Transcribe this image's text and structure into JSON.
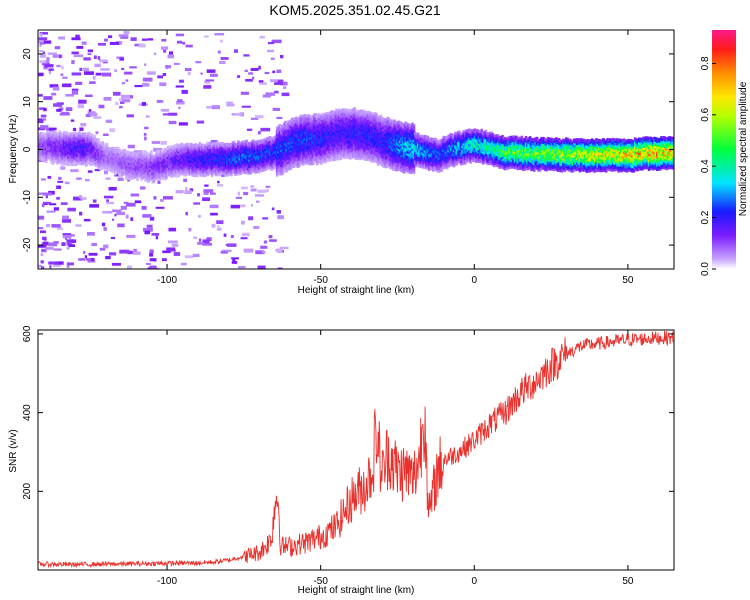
{
  "title": "KOM5.2025.351.02.45.G21",
  "chart_data": [
    {
      "type": "heatmap",
      "name": "spectrogram",
      "xlabel": "Height of straight line (km)",
      "ylabel": "Frequency (Hz)",
      "xlim": [
        -142,
        65
      ],
      "ylim": [
        -25,
        25
      ],
      "x_ticks": [
        -100,
        -50,
        0,
        50
      ],
      "x_tick_labels": [
        "-100",
        "-50",
        "0",
        "50"
      ],
      "y_ticks": [
        -20,
        -10,
        0,
        10,
        20
      ],
      "y_tick_labels": [
        "-20",
        "-10",
        "0",
        "10",
        "20"
      ],
      "colorbar": {
        "label": "Normalized spectral amplitude",
        "range": [
          0,
          0.93
        ],
        "ticks": [
          0.0,
          0.2,
          0.4,
          0.6,
          0.8
        ],
        "tick_labels": [
          "0.0",
          "0.2",
          "0.4",
          "0.6",
          "0.8"
        ]
      },
      "ridge": {
        "x": [
          -142,
          -128,
          -125,
          -120,
          -113,
          -105,
          -98,
          -92,
          -85,
          -80,
          -75,
          -70,
          -65,
          -60,
          -55,
          -50,
          -45,
          -40,
          -35,
          -30,
          -25,
          -20,
          -15,
          -12,
          -8,
          -4,
          0,
          5,
          10,
          20,
          30,
          40,
          50,
          60,
          65
        ],
        "freq": [
          0.8,
          0.5,
          0.3,
          -1.5,
          -3.0,
          -3.5,
          -2.0,
          -1.8,
          -1.7,
          -1.6,
          -1.3,
          -1.0,
          -0.2,
          1.5,
          2.5,
          2.5,
          3.5,
          3.8,
          3.2,
          2.0,
          1.0,
          0.5,
          -0.5,
          -1.0,
          0.2,
          0.8,
          1.3,
          0.5,
          -0.3,
          -0.6,
          -0.8,
          -0.9,
          -0.8,
          -0.4,
          -0.2
        ],
        "amplitude": [
          0.1,
          0.2,
          0.15,
          0.08,
          0.1,
          0.12,
          0.15,
          0.2,
          0.22,
          0.25,
          0.28,
          0.25,
          0.25,
          0.25,
          0.25,
          0.22,
          0.2,
          0.22,
          0.22,
          0.22,
          0.3,
          0.35,
          0.3,
          0.25,
          0.3,
          0.35,
          0.4,
          0.4,
          0.5,
          0.55,
          0.6,
          0.65,
          0.7,
          0.75,
          0.7
        ]
      }
    },
    {
      "type": "line",
      "name": "snr",
      "xlabel": "Height of straight line (km)",
      "ylabel": "SNR (v/v)",
      "xlim": [
        -142,
        65
      ],
      "ylim": [
        0,
        610
      ],
      "x_ticks": [
        -100,
        -50,
        0,
        50
      ],
      "x_tick_labels": [
        "-100",
        "-50",
        "0",
        "50"
      ],
      "y_ticks": [
        200,
        400,
        600
      ],
      "y_tick_labels": [
        "200",
        "400",
        "600"
      ],
      "series": [
        {
          "name": "SNR",
          "color": "#e8312c",
          "x": [
            -142,
            -130,
            -120,
            -110,
            -100,
            -90,
            -85,
            -80,
            -75,
            -70,
            -68,
            -66,
            -65,
            -64,
            -63,
            -60,
            -55,
            -50,
            -45,
            -40,
            -35,
            -33,
            -32,
            -30,
            -28,
            -25,
            -22,
            -20,
            -18,
            -16,
            -15,
            -12,
            -10,
            -5,
            0,
            5,
            10,
            15,
            20,
            25,
            30,
            35,
            40,
            50,
            60,
            65
          ],
          "y": [
            15,
            14,
            15,
            16,
            17,
            18,
            20,
            25,
            35,
            45,
            60,
            80,
            160,
            200,
            60,
            60,
            70,
            85,
            110,
            180,
            220,
            260,
            360,
            240,
            300,
            250,
            250,
            230,
            280,
            420,
            130,
            250,
            280,
            300,
            330,
            370,
            400,
            450,
            480,
            520,
            550,
            570,
            575,
            585,
            590,
            590
          ]
        }
      ]
    }
  ]
}
